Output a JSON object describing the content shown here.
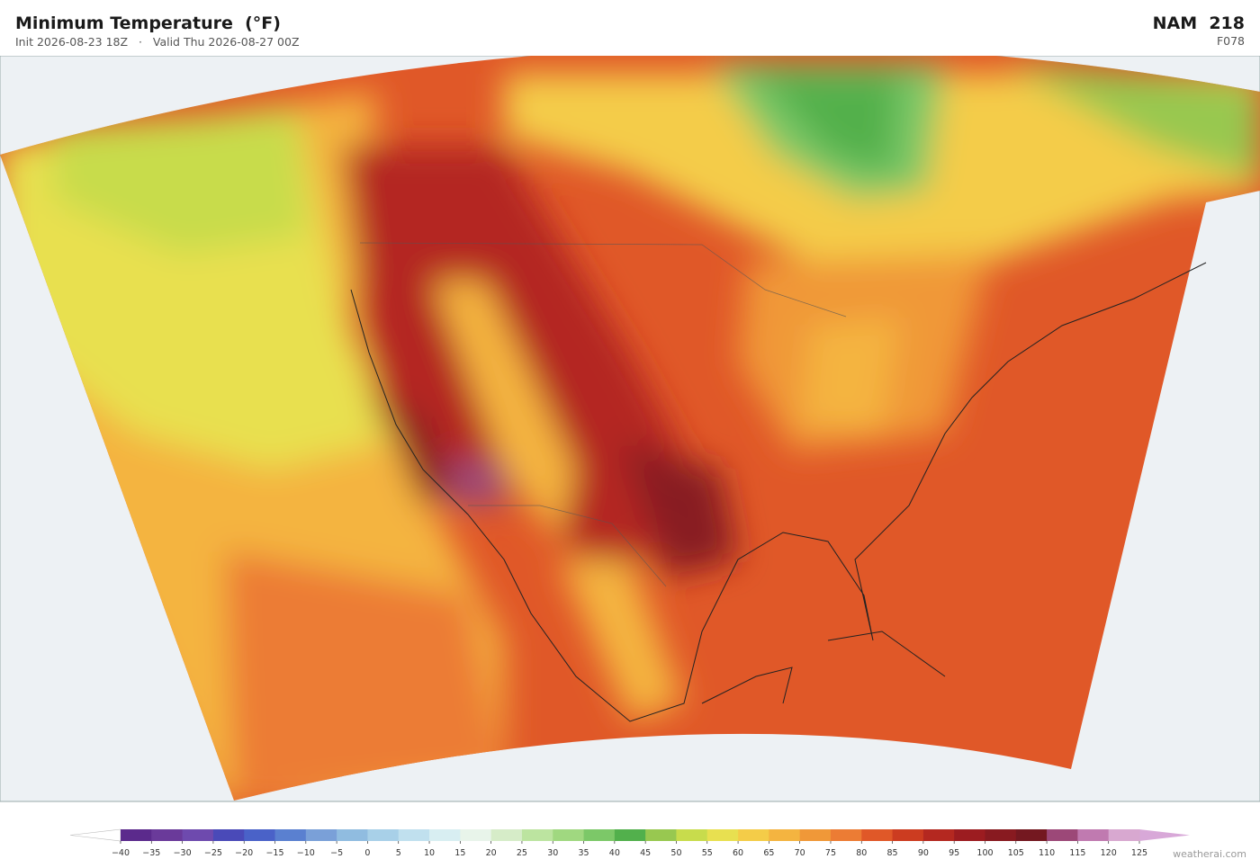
{
  "header": {
    "title": "Minimum Temperature  (°F)",
    "init": "Init 2026-08-23 18Z",
    "separator": "·",
    "valid": "Valid Thu 2026-08-27 00Z",
    "model": "NAM  218",
    "forecast_hour": "F078"
  },
  "colorbar": {
    "ticks": [
      {
        "value": -40,
        "label": "−40"
      },
      {
        "value": -35,
        "label": "−35"
      },
      {
        "value": -30,
        "label": "−30"
      },
      {
        "value": -25,
        "label": "−25"
      },
      {
        "value": -20,
        "label": "−20"
      },
      {
        "value": -15,
        "label": "−15"
      },
      {
        "value": -10,
        "label": "−10"
      },
      {
        "value": -5,
        "label": "−5"
      },
      0,
      5,
      10,
      15,
      20,
      25,
      30,
      35,
      40,
      45,
      50,
      55,
      60,
      65,
      70,
      75,
      80,
      85,
      90,
      95,
      100,
      105,
      110,
      115,
      120,
      125
    ],
    "colors": [
      "#5b2a8c",
      "#6a3a9a",
      "#6e4aae",
      "#4a4ab8",
      "#4a62c8",
      "#5a80d0",
      "#7aa0d8",
      "#90bce0",
      "#a8d0e8",
      "#c0e0ee",
      "#d8eef2",
      "#e8f4ea",
      "#d6ecc8",
      "#bce4a0",
      "#a0d880",
      "#7cc868",
      "#52b04c",
      "#98c850",
      "#c8dc4c",
      "#e8e050",
      "#f4cc48",
      "#f4b440",
      "#f09838",
      "#ec7c34",
      "#e05828",
      "#cc3c20",
      "#b42820",
      "#9c1c20",
      "#881a20",
      "#741820",
      "#9c4878",
      "#c07ab0",
      "#d8a8d0"
    ],
    "under_color": "#ffffff",
    "over_color": "#d8a8d8"
  },
  "watermark": "weatherai.com"
}
